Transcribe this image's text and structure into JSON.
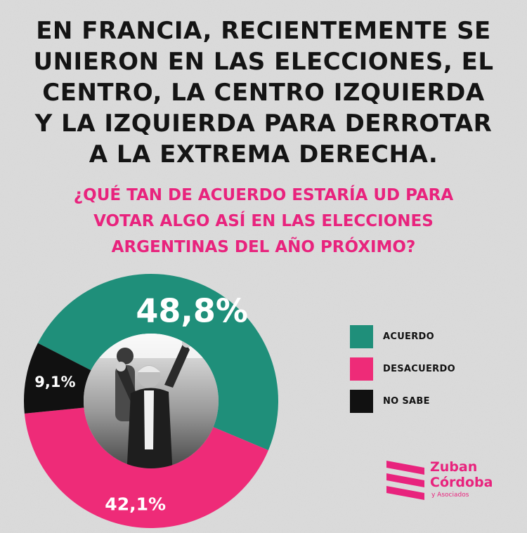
{
  "headline": {
    "lines": [
      "EN FRANCIA, RECIENTEMENTE SE",
      "UNIERON EN LAS ELECCIONES, EL",
      "CENTRO, LA CENTRO IZQUIERDA",
      "Y LA IZQUIERDA PARA DERROTAR",
      "A LA EXTREMA DERECHA."
    ]
  },
  "question": {
    "lines": [
      "¿QUÉ TAN DE ACUERDO ESTARÍA UD PARA",
      "VOTAR ALGO ASÍ EN LAS ELECCIONES",
      "ARGENTINAS DEL AÑO PRÓXIMO?"
    ]
  },
  "chart_data": {
    "type": "pie",
    "variant": "donut",
    "slices": [
      {
        "label": "ACUERDO",
        "value": 48.8,
        "display": "48,8%",
        "color": "#1f8f7a"
      },
      {
        "label": "DESACUERDO",
        "value": 42.1,
        "display": "42,1%",
        "color": "#ee2b78"
      },
      {
        "label": "NO SABE",
        "value": 9.1,
        "display": "9,1%",
        "color": "#111111"
      }
    ],
    "legend_position": "right",
    "center_image": "photo-of-politician"
  },
  "logo": {
    "line1": "Zuban",
    "line2": "Córdoba",
    "sub": "y Asociados",
    "color": "#e8237d"
  }
}
